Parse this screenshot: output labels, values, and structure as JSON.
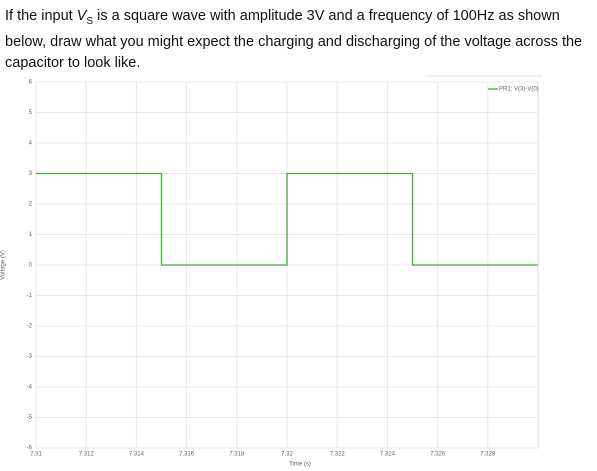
{
  "question": {
    "before": "If the input ",
    "var": "V",
    "sub": "S",
    "after": " is a square wave with amplitude 3V and a frequency of 100Hz as shown below, draw what you might expect the charging and discharging of the voltage across the capacitor to look like."
  },
  "chart_data": {
    "type": "line",
    "xlabel": "Time (s)",
    "ylabel": "Voltage (V)",
    "x": [
      7.31,
      7.315,
      7.315,
      7.32,
      7.32,
      7.325,
      7.325,
      7.33
    ],
    "series": [
      {
        "name": "PR1: V(3)-V(0)",
        "color": "#3cae32",
        "values": [
          3,
          3,
          0,
          0,
          3,
          3,
          0,
          0
        ]
      }
    ],
    "xlim": [
      7.31,
      7.33
    ],
    "xticks": [
      7.31,
      7.312,
      7.314,
      7.316,
      7.318,
      7.32,
      7.322,
      7.324,
      7.326,
      7.328
    ],
    "ylim": [
      -6,
      6
    ],
    "yticks": [
      -6,
      -5,
      -4,
      -3,
      -2,
      -1,
      0,
      1,
      2,
      3,
      4,
      5,
      6
    ],
    "grid": true,
    "legend": "top-right"
  }
}
